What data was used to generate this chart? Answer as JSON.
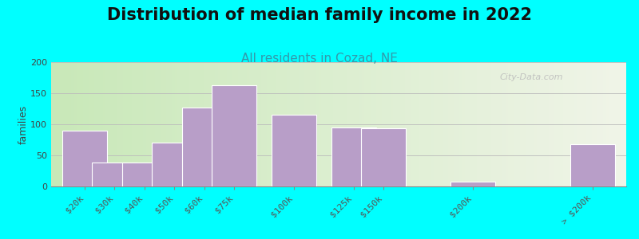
{
  "title": "Distribution of median family income in 2022",
  "subtitle": "All residents in Cozad, NE",
  "ylabel": "families",
  "categories": [
    "$20k",
    "$30k",
    "$40k",
    "$50k",
    "$60k",
    "$75k",
    "$100k",
    "$125k",
    "$150k",
    "$200k",
    "> $200k"
  ],
  "values": [
    90,
    38,
    38,
    70,
    127,
    163,
    116,
    95,
    93,
    8,
    68
  ],
  "bar_color": "#b89ec8",
  "bar_edge_color": "#ffffff",
  "ylim": [
    0,
    200
  ],
  "yticks": [
    0,
    50,
    100,
    150,
    200
  ],
  "background_color": "#00ffff",
  "plot_bg_left": "#c8e8b8",
  "plot_bg_right": "#f0f4e8",
  "title_fontsize": 15,
  "subtitle_fontsize": 11,
  "subtitle_color": "#3399aa",
  "watermark": "City-Data.com",
  "positions": [
    0,
    1,
    2,
    3,
    4,
    5,
    7,
    9,
    10,
    13,
    17
  ],
  "bar_width": 1.5
}
